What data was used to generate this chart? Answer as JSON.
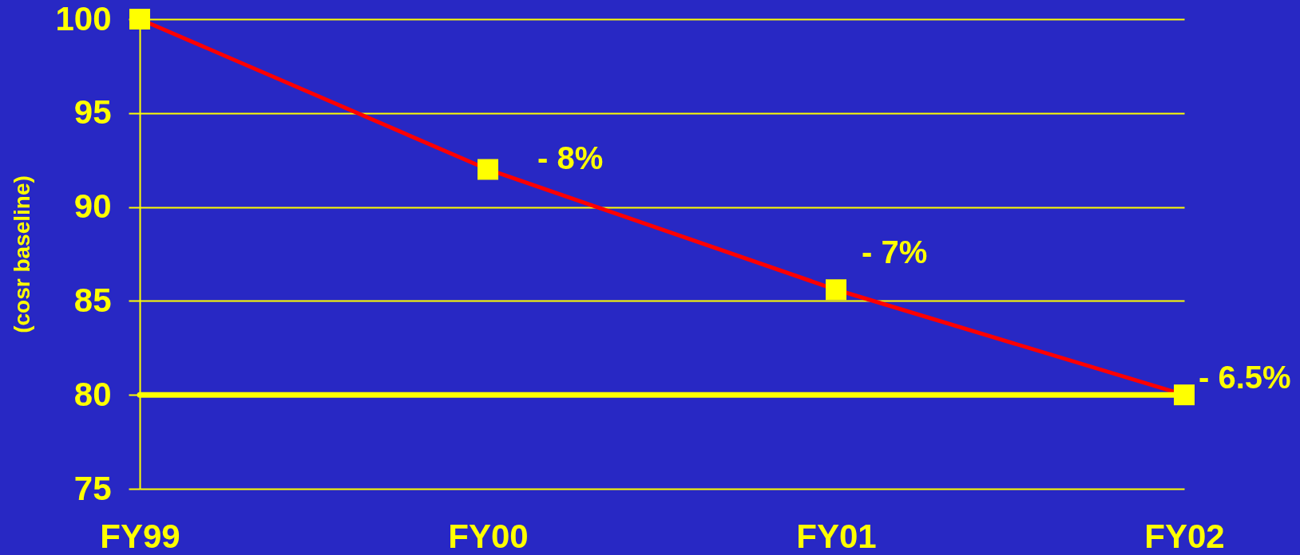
{
  "chart_data": {
    "type": "line",
    "ylabel": "(cosr baseline)",
    "categories": [
      "FY99",
      "FY00",
      "FY01",
      "FY02"
    ],
    "series": [
      {
        "color": "#ff0000",
        "values": [
          100,
          92,
          85.6,
          80
        ]
      }
    ],
    "ylim": [
      75,
      100
    ],
    "yticks": [
      75,
      80,
      85,
      90,
      95,
      100
    ],
    "grid": "y",
    "marker": "square",
    "line_style": "solid",
    "ref_lines": [
      {
        "axis": "y",
        "value": 80,
        "color": "#ffff00"
      }
    ],
    "annotations": [
      {
        "text": "- 8%",
        "x": "FY00",
        "y": 92
      },
      {
        "text": "- 7%",
        "x": "FY01",
        "y": 85.6
      },
      {
        "text": "- 6.5%",
        "x": "FY02",
        "y": 80
      }
    ]
  }
}
